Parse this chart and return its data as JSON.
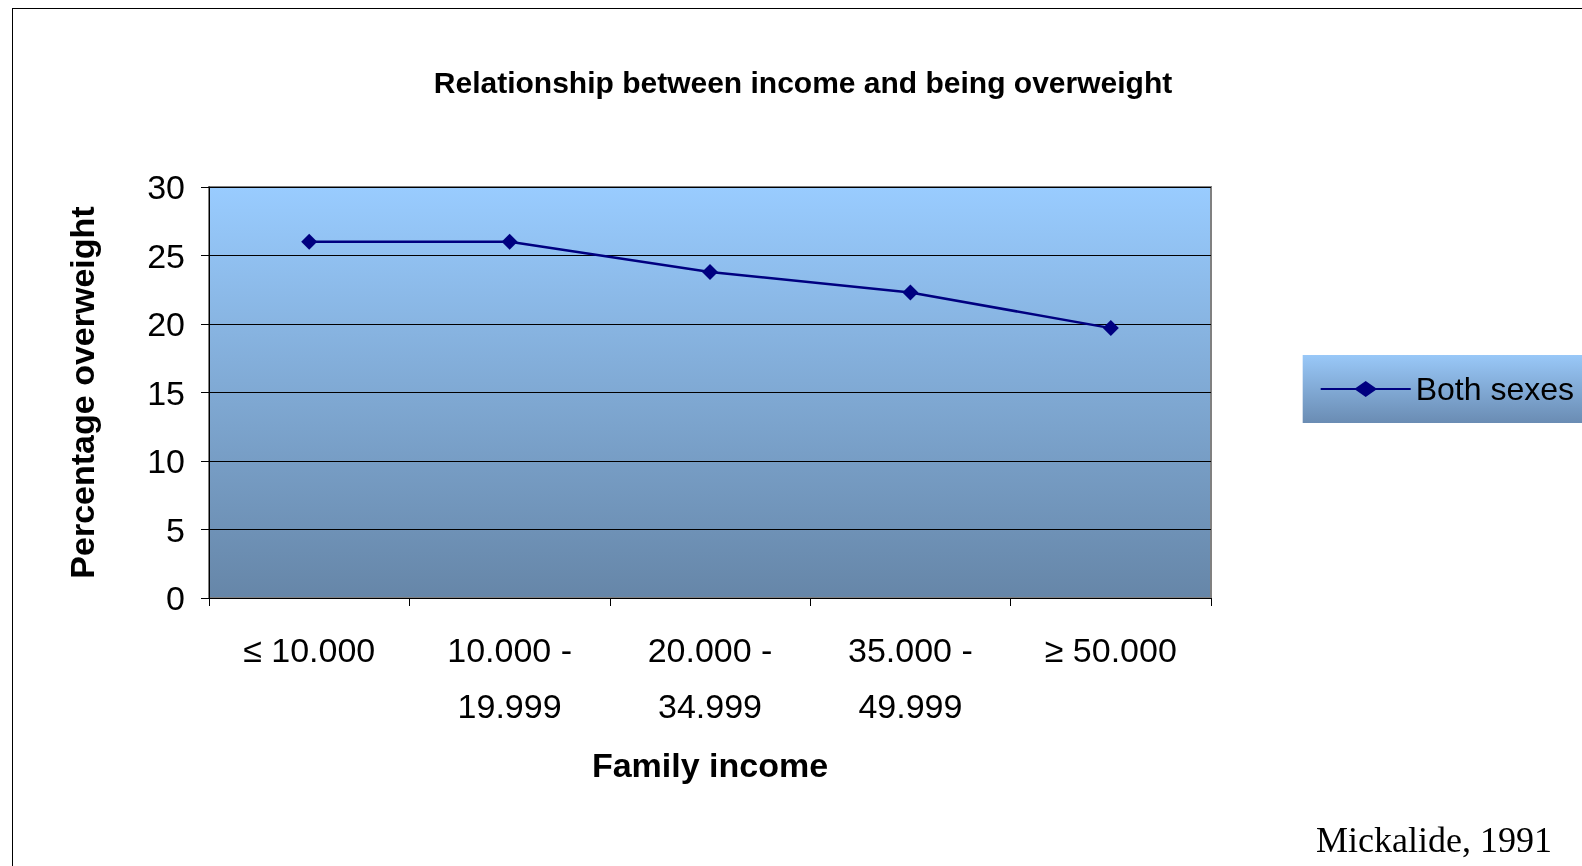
{
  "chart_data": {
    "type": "line",
    "title": "Relationship between income and being overweight",
    "xlabel": "Family income",
    "ylabel": "Percentage overweight",
    "categories": [
      "≤ 10.000",
      "10.000 - 19.999",
      "20.000 - 34.999",
      "35.000 - 49.999",
      "≥ 50.000"
    ],
    "series": [
      {
        "name": "Both sexes",
        "color": "#000080",
        "values": [
          26,
          26,
          23.8,
          22.3,
          19.7
        ]
      }
    ],
    "ylim": [
      0,
      30
    ],
    "yticks": [
      0,
      5,
      10,
      15,
      20,
      25,
      30
    ],
    "grid": "y",
    "legend": "right",
    "marker": "diamond",
    "line_style": "solid",
    "annotations": [
      "Mickalide, 1991"
    ]
  }
}
